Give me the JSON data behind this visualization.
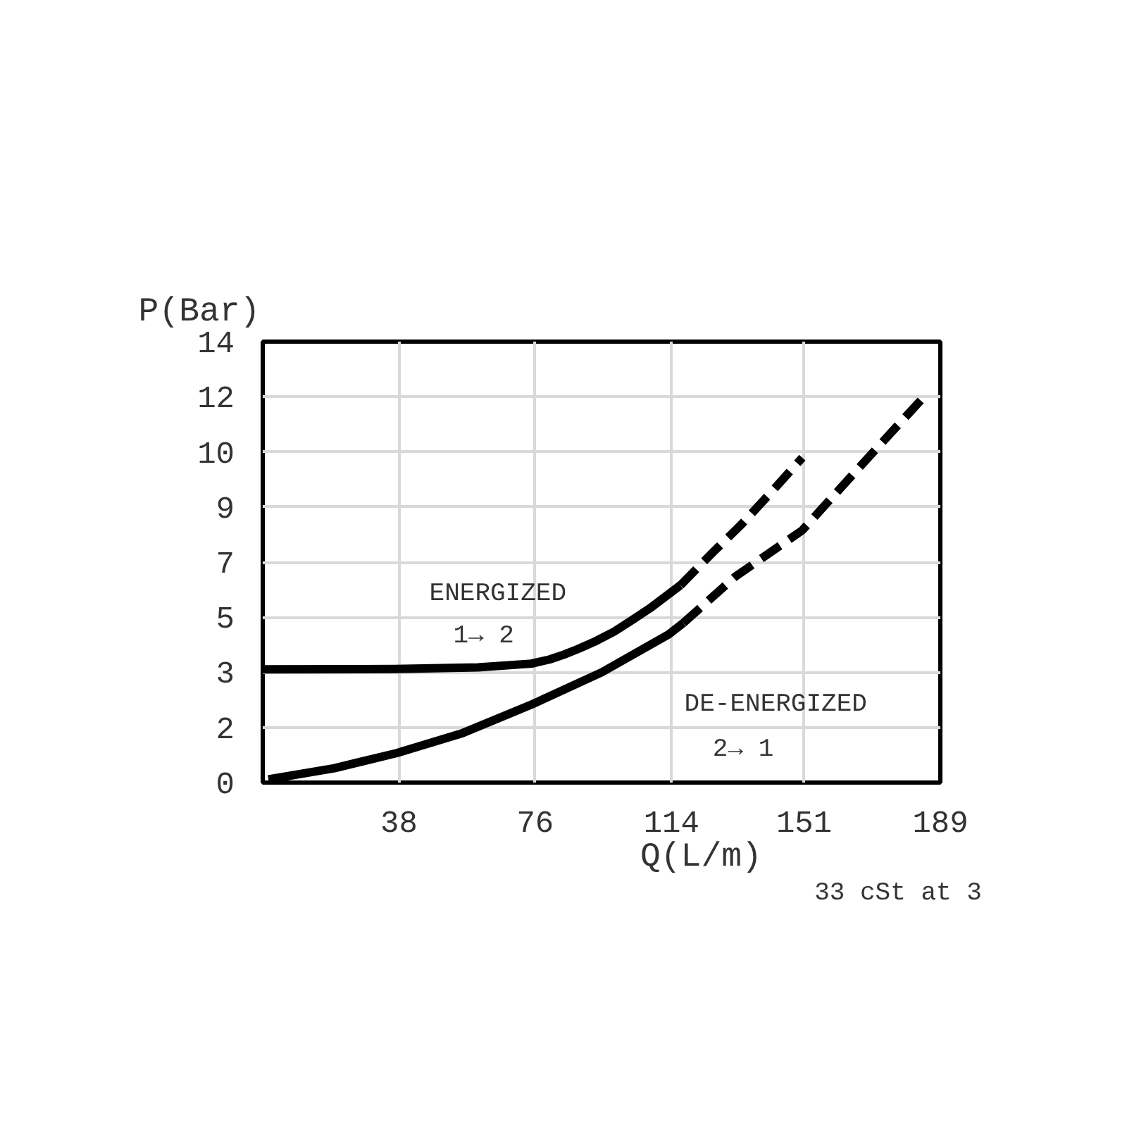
{
  "chart_data": {
    "type": "line",
    "xlabel": "Q(L/m)",
    "ylabel": "P(Bar)",
    "xlim": [
      0,
      189
    ],
    "ylim": [
      0,
      13.79
    ],
    "xticks": [
      38,
      76,
      114,
      151,
      189
    ],
    "yticks": [
      {
        "value": 0,
        "label": "0"
      },
      {
        "value": 1.72,
        "label": "2"
      },
      {
        "value": 3.45,
        "label": "3"
      },
      {
        "value": 5.17,
        "label": "5"
      },
      {
        "value": 6.89,
        "label": "7"
      },
      {
        "value": 8.62,
        "label": "9"
      },
      {
        "value": 10.34,
        "label": "10"
      },
      {
        "value": 12.07,
        "label": "12"
      },
      {
        "value": 13.79,
        "label": "14"
      }
    ],
    "grid": true,
    "series": [
      {
        "name": "ENERGIZED",
        "color": "#000000",
        "line_style": "solid",
        "x": [
          0,
          37,
          60,
          75,
          80,
          84,
          88,
          93,
          98,
          103,
          108,
          116.5
        ],
        "values": [
          3.54,
          3.55,
          3.6,
          3.72,
          3.85,
          4.0,
          4.18,
          4.43,
          4.72,
          5.08,
          5.45,
          6.17
        ]
      },
      {
        "color": "#000000",
        "line_style": "dashed",
        "x": [
          116.5,
          125.3,
          133.5,
          142,
          150.5
        ],
        "values": [
          6.17,
          7.17,
          8.07,
          9.1,
          10.16
        ]
      },
      {
        "name": "DE-ENERGIZED",
        "color": "#000000",
        "line_style": "solid",
        "x": [
          1.6,
          20,
          37.3,
          55.8,
          75.2,
          94.6,
          113.2,
          117.3
        ],
        "values": [
          0.1,
          0.45,
          0.92,
          1.55,
          2.45,
          3.45,
          4.63,
          4.99
        ]
      },
      {
        "color": "#000000",
        "line_style": "dashed",
        "x": [
          117.3,
          131.8,
          150.5,
          167.4,
          184.4
        ],
        "values": [
          4.99,
          6.44,
          7.89,
          9.98,
          12.06
        ]
      }
    ],
    "annotations": [
      "1→ 2",
      "2→ 1",
      "33 cSt at 3"
    ]
  }
}
